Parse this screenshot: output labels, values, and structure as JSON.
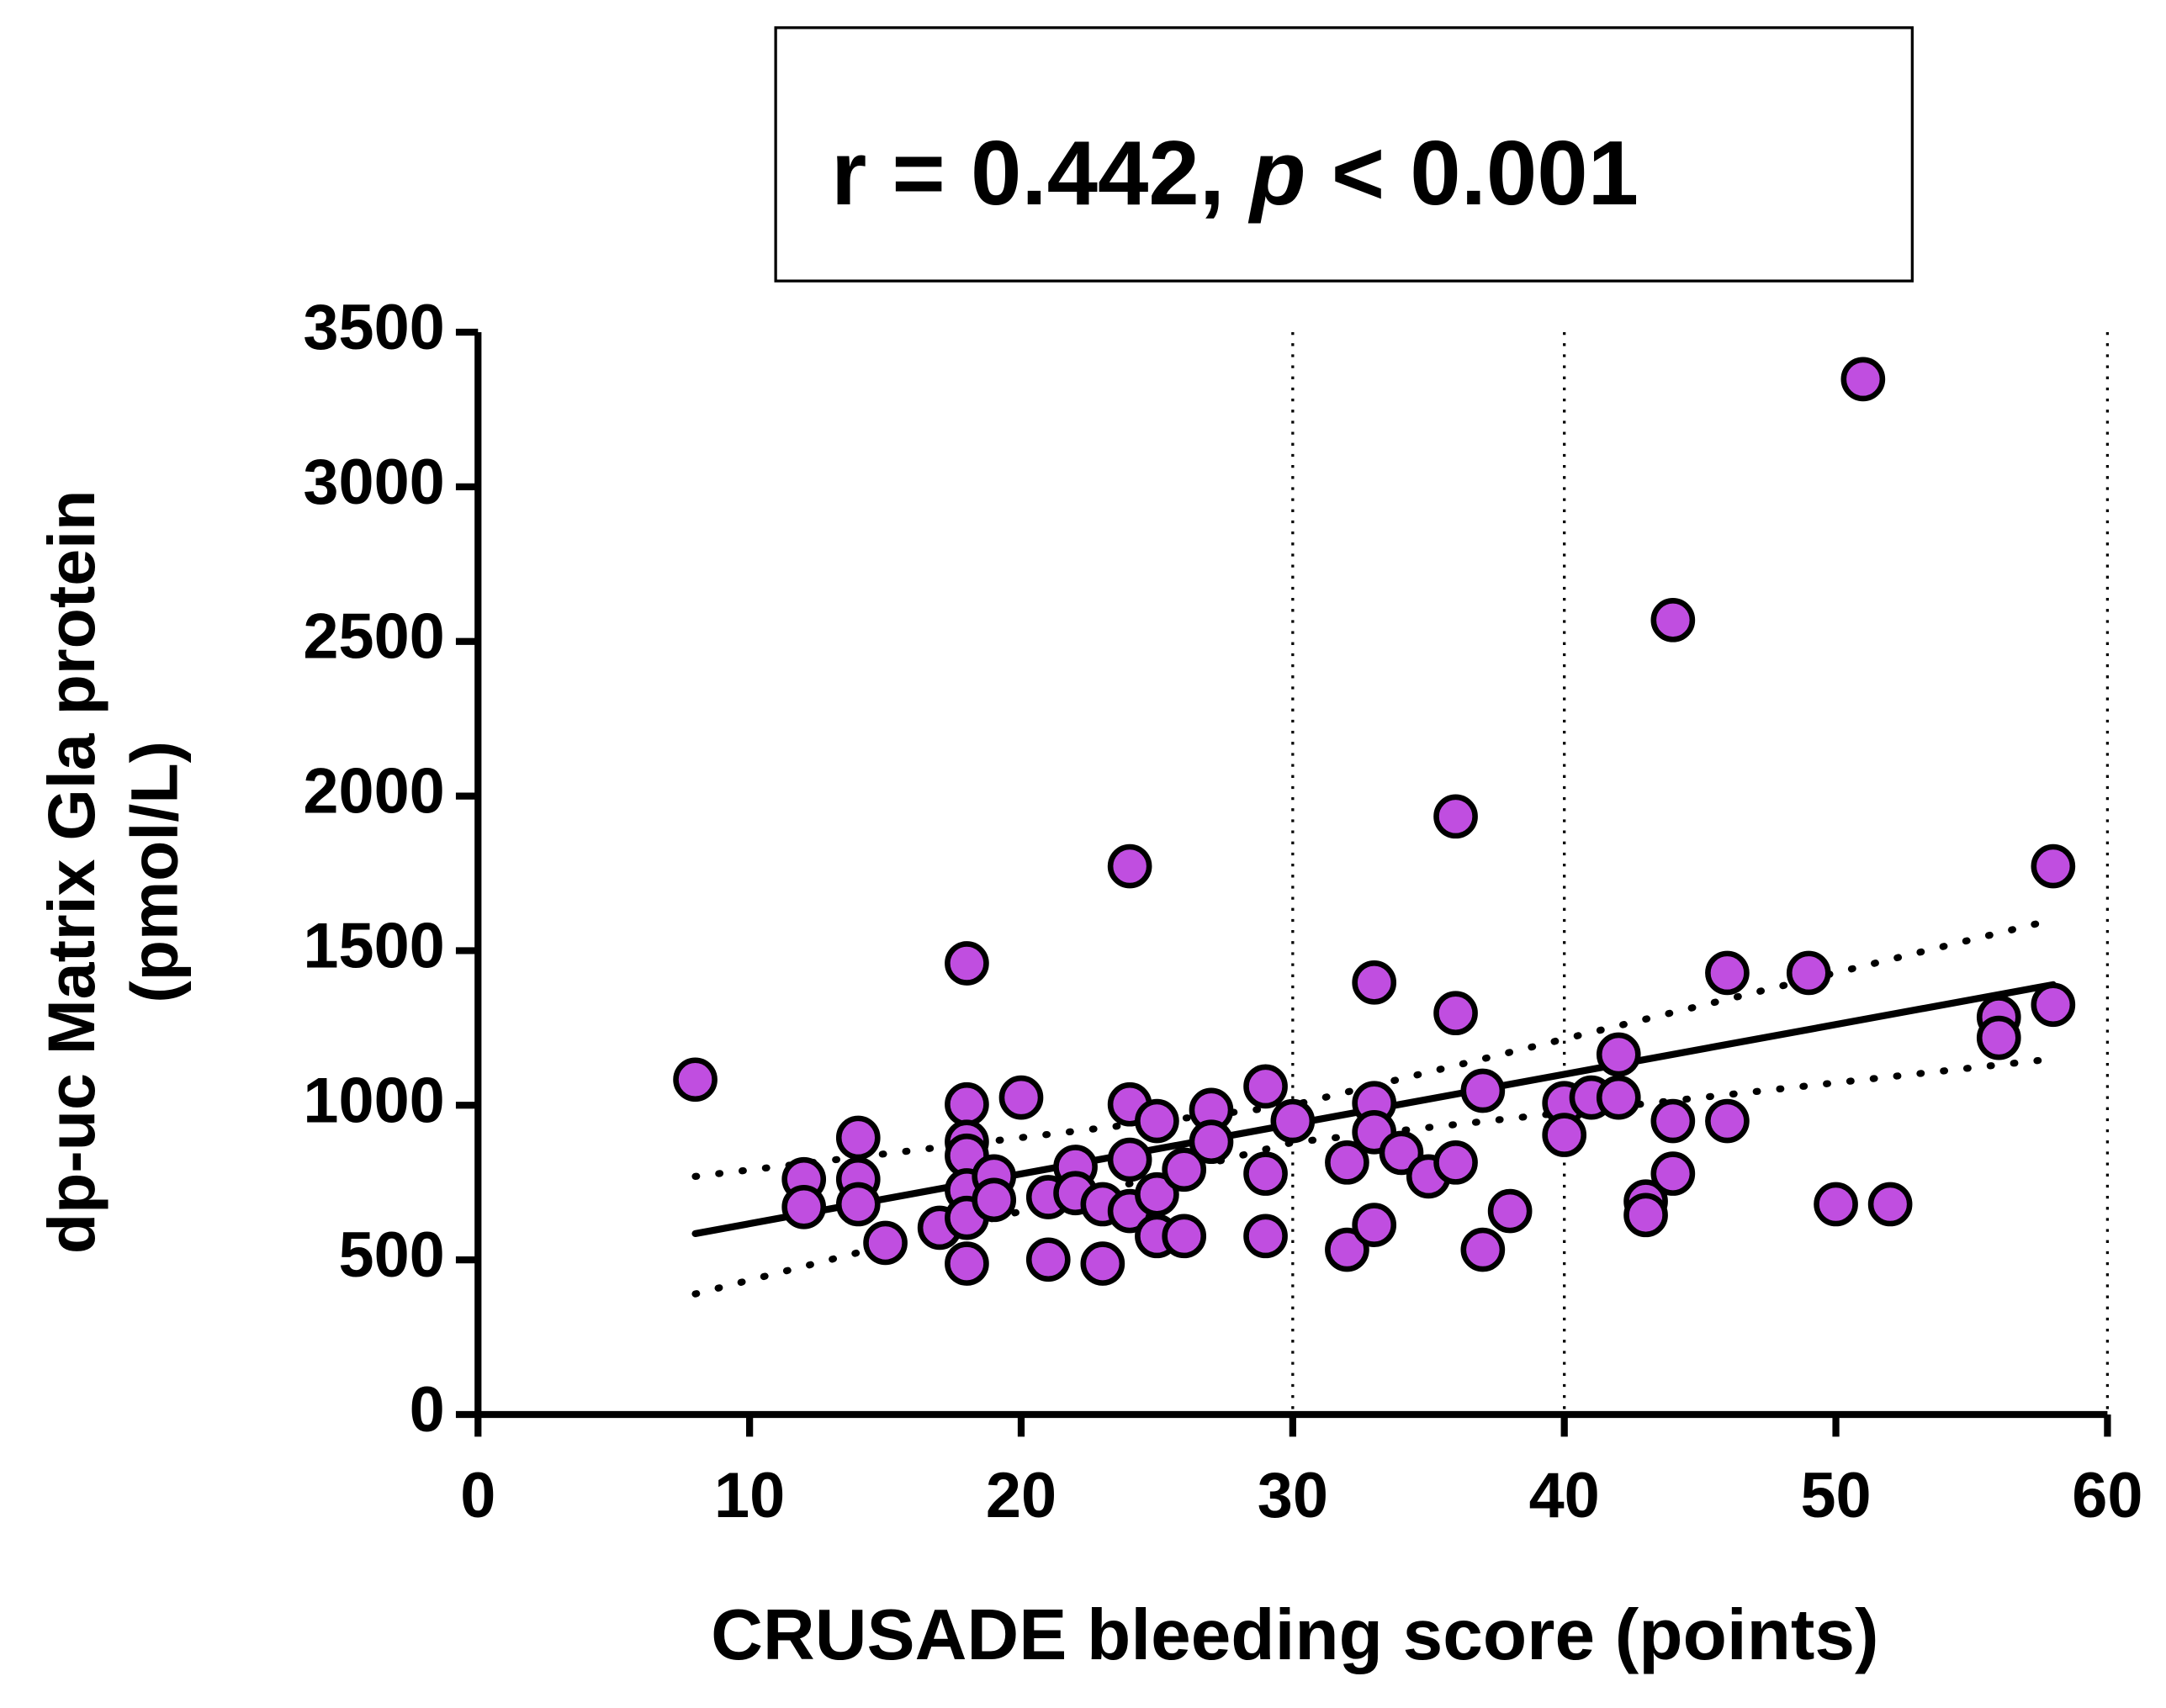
{
  "chart_data": {
    "type": "scatter",
    "annotation": [
      "r = 0.442,",
      "p",
      "< 0.001"
    ],
    "xlabel": "CRUSADE bleeding score (points)",
    "ylabel": [
      "dp-uc Matrix Gla protein",
      "(pmol/L)"
    ],
    "xlim": [
      0,
      60
    ],
    "xticks": [
      0,
      10,
      20,
      30,
      40,
      50,
      60
    ],
    "ylim": [
      0,
      3500
    ],
    "yticks": [
      0,
      500,
      1000,
      1500,
      2000,
      2500,
      3000,
      3500
    ],
    "reference_lines_x": [
      30,
      40,
      60
    ],
    "marker_color": "#c04ee0",
    "series": [
      {
        "x": [
          8,
          12,
          12,
          14,
          14,
          14,
          15,
          17,
          18,
          18,
          18,
          18,
          18,
          18,
          18,
          19,
          19,
          20,
          21,
          21,
          22,
          22,
          23,
          23,
          24,
          24,
          24,
          24,
          25,
          25,
          25,
          26,
          26,
          27,
          27,
          29,
          29,
          29,
          30,
          32,
          32,
          33,
          33,
          33,
          33,
          34,
          35,
          36,
          36,
          36,
          37,
          37,
          38,
          40,
          40,
          41,
          42,
          42,
          43,
          43,
          44,
          44,
          44,
          46,
          46,
          49,
          50,
          51,
          52,
          56,
          56,
          58,
          58
        ],
        "values": [
          1083,
          761,
          671,
          895,
          761,
          680,
          555,
          604,
          1459,
          1003,
          882,
          837,
          725,
          636,
          488,
          770,
          694,
          1025,
          703,
          501,
          801,
          716,
          680,
          488,
          1773,
          1003,
          824,
          658,
          949,
          712,
          577,
          792,
          577,
          985,
          882,
          1061,
          779,
          577,
          949,
          815,
          533,
          1397,
          1007,
          913,
          613,
          846,
          770,
          1934,
          1298,
          815,
          1047,
          533,
          658,
          1007,
          904,
          1025,
          1164,
          1025,
          689,
          645,
          2569,
          949,
          779,
          1428,
          949,
          1428,
          680,
          3348,
          680,
          1285,
          1218,
          1773,
          1325
        ]
      }
    ],
    "fit": {
      "x": [
        8,
        58
      ],
      "values": [
        585,
        1390
      ]
    },
    "confidence_upper": {
      "x": [
        8,
        30,
        58
      ],
      "values": [
        770,
        1000,
        1600
      ]
    },
    "confidence_lower": {
      "x": [
        8,
        30,
        58
      ],
      "values": [
        390,
        880,
        1150
      ]
    }
  }
}
